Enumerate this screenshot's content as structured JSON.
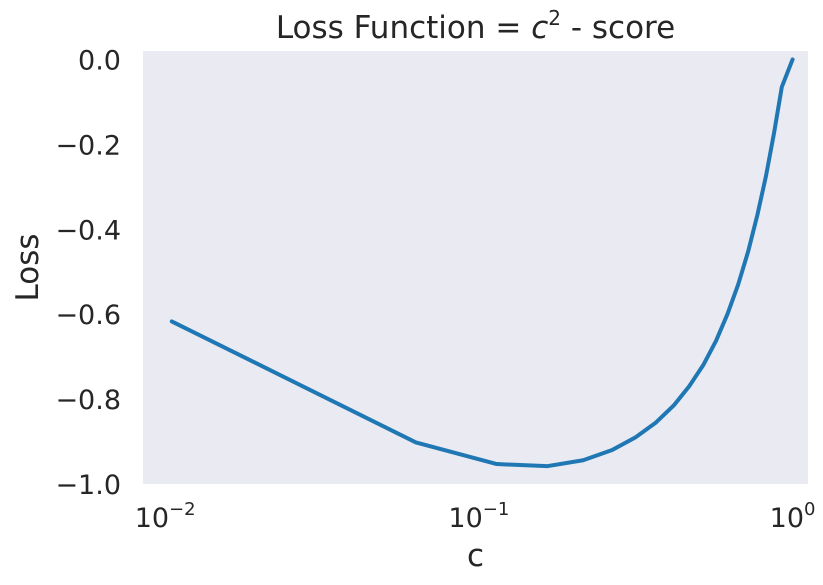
{
  "chart_data": {
    "type": "line",
    "title": "Loss Function = c² - score",
    "title_parts": {
      "prefix": "Loss Function = ",
      "variable": "c",
      "exponent": "2",
      "suffix": " - score"
    },
    "xlabel": "c",
    "ylabel": "Loss",
    "xscale": "log",
    "xlim": [
      0.0085,
      1.12
    ],
    "ylim": [
      -1.0,
      0.02
    ],
    "x_ticks": [
      {
        "value": 0.01,
        "base": "10",
        "exp": "−2"
      },
      {
        "value": 0.1,
        "base": "10",
        "exp": "−1"
      },
      {
        "value": 1.0,
        "base": "10",
        "exp": "0"
      }
    ],
    "y_ticks": [
      {
        "value": 0.0,
        "label": "0.0"
      },
      {
        "value": -0.2,
        "label": "−0.2"
      },
      {
        "value": -0.4,
        "label": "−0.4"
      },
      {
        "value": -0.6,
        "label": "−0.6"
      },
      {
        "value": -0.8,
        "label": "−0.8"
      },
      {
        "value": -1.0,
        "label": "−1.0"
      }
    ],
    "grid": false,
    "colors": {
      "line": "#1f77b4",
      "plot_background": "#eaeaf2",
      "text": "#262626"
    },
    "series": [
      {
        "x": [
          0.0105,
          0.063,
          0.114,
          0.165,
          0.215,
          0.266,
          0.316,
          0.367,
          0.418,
          0.468,
          0.519,
          0.57,
          0.62,
          0.671,
          0.722,
          0.772,
          0.823,
          0.873,
          0.924,
          1.0
        ],
        "y": [
          -0.617,
          -0.902,
          -0.953,
          -0.958,
          -0.944,
          -0.92,
          -0.89,
          -0.855,
          -0.815,
          -0.77,
          -0.72,
          -0.663,
          -0.6,
          -0.53,
          -0.452,
          -0.367,
          -0.274,
          -0.173,
          -0.065,
          0.0
        ]
      }
    ]
  }
}
